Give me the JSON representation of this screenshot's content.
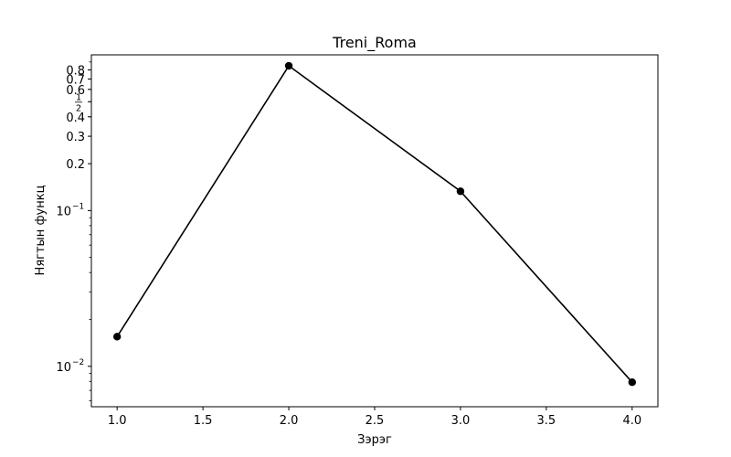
{
  "chart_data": {
    "type": "line",
    "title": "Treni_Roma",
    "xlabel": "Зэрэг",
    "ylabel": "Нягтын функц",
    "x": [
      1.0,
      2.0,
      3.0,
      4.0
    ],
    "series": [
      {
        "values": [
          0.0155,
          0.85,
          0.133,
          0.0079
        ],
        "color": "#000000",
        "marker": "circle"
      }
    ],
    "xlim": [
      0.85,
      4.15
    ],
    "ylim": [
      0.0055,
      1.0
    ],
    "yscale": "log",
    "x_ticks": [
      {
        "value": 1.0,
        "label": "1.0"
      },
      {
        "value": 1.5,
        "label": "1.5"
      },
      {
        "value": 2.0,
        "label": "2.0"
      },
      {
        "value": 2.5,
        "label": "2.5"
      },
      {
        "value": 3.0,
        "label": "3.0"
      },
      {
        "value": 3.5,
        "label": "3.5"
      },
      {
        "value": 4.0,
        "label": "4.0"
      }
    ],
    "y_ticks": [
      {
        "value": 0.01,
        "label": "10",
        "exp": "−2"
      },
      {
        "value": 0.1,
        "label": "10",
        "exp": "−1"
      },
      {
        "value": 0.2,
        "label": "0.2"
      },
      {
        "value": 0.3,
        "label": "0.3"
      },
      {
        "value": 0.4,
        "label": "0.4"
      },
      {
        "value": 0.5,
        "label": "",
        "frac": [
          "1",
          "2"
        ]
      },
      {
        "value": 0.6,
        "label": "0.6"
      },
      {
        "value": 0.7,
        "label": "0.7"
      },
      {
        "value": 0.8,
        "label": "0.8"
      }
    ],
    "grid": false,
    "legend": "none"
  }
}
